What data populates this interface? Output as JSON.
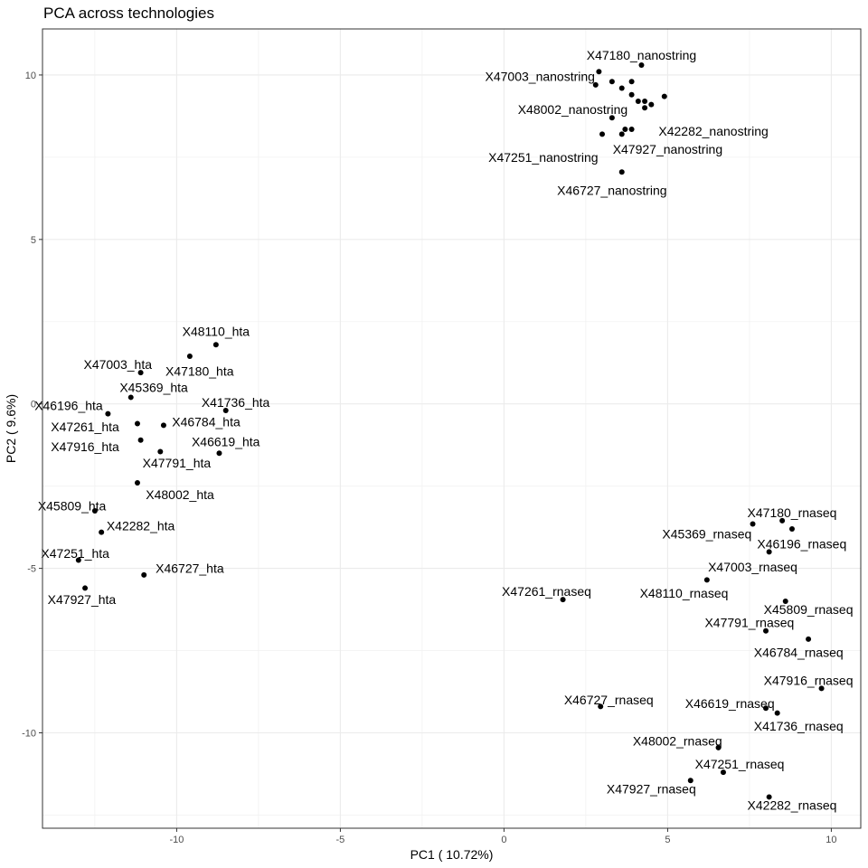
{
  "chart_data": {
    "type": "scatter",
    "title": "PCA across technologies",
    "xlabel": "PC1 ( 10.72%)",
    "ylabel": "PC2 ( 9.6%)",
    "xlim": [
      -14.1,
      10.9
    ],
    "ylim": [
      -12.9,
      11.4
    ],
    "xticks": [
      -10,
      -5,
      0,
      5,
      10
    ],
    "yticks": [
      -10,
      -5,
      0,
      5,
      10
    ],
    "grid": true,
    "legend": "none",
    "point_color": "#000000",
    "points": [
      {
        "x": 2.9,
        "y": 10.1,
        "label": "X47180_nanostring",
        "lx": 4.2,
        "ly": 10.6
      },
      {
        "x": 4.2,
        "y": 10.3,
        "label": ""
      },
      {
        "x": 2.8,
        "y": 9.7,
        "label": "X47003_nanostring",
        "lx": 1.1,
        "ly": 9.95
      },
      {
        "x": 3.3,
        "y": 9.8,
        "label": ""
      },
      {
        "x": 3.6,
        "y": 9.6,
        "label": ""
      },
      {
        "x": 3.9,
        "y": 9.8,
        "label": ""
      },
      {
        "x": 3.9,
        "y": 9.4,
        "label": ""
      },
      {
        "x": 4.1,
        "y": 9.2,
        "label": ""
      },
      {
        "x": 4.3,
        "y": 9.2,
        "label": ""
      },
      {
        "x": 4.3,
        "y": 9.0,
        "label": ""
      },
      {
        "x": 4.5,
        "y": 9.1,
        "label": ""
      },
      {
        "x": 4.9,
        "y": 9.35,
        "label": ""
      },
      {
        "x": 3.3,
        "y": 8.7,
        "label": "X48002_nanostring",
        "lx": 2.1,
        "ly": 8.95
      },
      {
        "x": 3.7,
        "y": 8.35,
        "label": "X42282_nanostring",
        "lx": 6.4,
        "ly": 8.3
      },
      {
        "x": 3.9,
        "y": 8.35,
        "label": ""
      },
      {
        "x": 3.0,
        "y": 8.2,
        "label": "X47251_nanostring",
        "lx": 1.2,
        "ly": 7.5
      },
      {
        "x": 3.6,
        "y": 8.2,
        "label": "X47927_nanostring",
        "lx": 5.0,
        "ly": 7.75
      },
      {
        "x": 3.6,
        "y": 7.05,
        "label": "X46727_nanostring",
        "lx": 3.3,
        "ly": 6.5
      },
      {
        "x": -8.8,
        "y": 1.8,
        "label": "X48110_hta",
        "lx": -8.8,
        "ly": 2.2
      },
      {
        "x": -9.6,
        "y": 1.45,
        "label": "X47180_hta",
        "lx": -9.3,
        "ly": 1.0
      },
      {
        "x": -11.1,
        "y": 0.95,
        "label": "X47003_hta",
        "lx": -11.8,
        "ly": 1.2
      },
      {
        "x": -11.4,
        "y": 0.2,
        "label": "X45369_hta",
        "lx": -10.7,
        "ly": 0.5
      },
      {
        "x": -8.5,
        "y": -0.2,
        "label": "X41736_hta",
        "lx": -8.2,
        "ly": 0.05
      },
      {
        "x": -12.1,
        "y": -0.3,
        "label": "X46196_hta",
        "lx": -13.3,
        "ly": -0.05
      },
      {
        "x": -11.2,
        "y": -0.6,
        "label": "X47261_hta",
        "lx": -12.8,
        "ly": -0.7
      },
      {
        "x": -10.4,
        "y": -0.65,
        "label": "X46784_hta",
        "lx": -9.1,
        "ly": -0.55
      },
      {
        "x": -11.1,
        "y": -1.1,
        "label": "X47916_hta",
        "lx": -12.8,
        "ly": -1.3
      },
      {
        "x": -10.5,
        "y": -1.45,
        "label": "X47791_hta",
        "lx": -10.0,
        "ly": -1.8
      },
      {
        "x": -8.7,
        "y": -1.5,
        "label": "X46619_hta",
        "lx": -8.5,
        "ly": -1.15
      },
      {
        "x": -11.2,
        "y": -2.4,
        "label": "X48002_hta",
        "lx": -9.9,
        "ly": -2.75
      },
      {
        "x": -12.5,
        "y": -3.25,
        "label": "X45809_hta",
        "lx": -13.2,
        "ly": -3.1
      },
      {
        "x": -12.3,
        "y": -3.9,
        "label": "X42282_hta",
        "lx": -11.1,
        "ly": -3.7
      },
      {
        "x": -13.0,
        "y": -4.75,
        "label": "X47251_hta",
        "lx": -13.1,
        "ly": -4.55
      },
      {
        "x": -11.0,
        "y": -5.2,
        "label": "X46727_hta",
        "lx": -9.6,
        "ly": -5.0
      },
      {
        "x": -12.8,
        "y": -5.6,
        "label": "X47927_hta",
        "lx": -12.9,
        "ly": -5.95
      },
      {
        "x": 8.5,
        "y": -3.55,
        "label": "X47180_rnaseq",
        "lx": 8.8,
        "ly": -3.3
      },
      {
        "x": 7.6,
        "y": -3.65,
        "label": "X45369_rnaseq",
        "lx": 6.2,
        "ly": -3.95
      },
      {
        "x": 8.8,
        "y": -3.8,
        "label": "X46196_rnaseq",
        "lx": 9.1,
        "ly": -4.25
      },
      {
        "x": 8.1,
        "y": -4.5,
        "label": "X47003_rnaseq",
        "lx": 7.6,
        "ly": -4.95
      },
      {
        "x": 6.2,
        "y": -5.35,
        "label": "X48110_rnaseq",
        "lx": 5.5,
        "ly": -5.75
      },
      {
        "x": 1.8,
        "y": -5.95,
        "label": "X47261_rnaseq",
        "lx": 1.3,
        "ly": -5.7
      },
      {
        "x": 8.6,
        "y": -6.0,
        "label": "X45809_rnaseq",
        "lx": 9.3,
        "ly": -6.25
      },
      {
        "x": 8.0,
        "y": -6.9,
        "label": "X47791_rnaseq",
        "lx": 7.5,
        "ly": -6.65
      },
      {
        "x": 9.3,
        "y": -7.15,
        "label": "X46784_rnaseq",
        "lx": 9.0,
        "ly": -7.55
      },
      {
        "x": 9.7,
        "y": -8.65,
        "label": "X47916_rnaseq",
        "lx": 9.3,
        "ly": -8.4
      },
      {
        "x": 2.95,
        "y": -9.2,
        "label": "X46727_rnaseq",
        "lx": 3.2,
        "ly": -9.0
      },
      {
        "x": 8.0,
        "y": -9.25,
        "label": "X46619_rnaseq",
        "lx": 6.9,
        "ly": -9.1
      },
      {
        "x": 8.35,
        "y": -9.4,
        "label": "X41736_rnaseq",
        "lx": 9.0,
        "ly": -9.8
      },
      {
        "x": 6.55,
        "y": -10.45,
        "label": "X48002_rnaseq",
        "lx": 5.3,
        "ly": -10.25
      },
      {
        "x": 6.7,
        "y": -11.2,
        "label": "X47251_rnaseq",
        "lx": 7.2,
        "ly": -10.95
      },
      {
        "x": 5.7,
        "y": -11.45,
        "label": "X47927_rnaseq",
        "lx": 4.5,
        "ly": -11.7
      },
      {
        "x": 8.1,
        "y": -11.95,
        "label": "X42282_rnaseq",
        "lx": 8.8,
        "ly": -12.2
      }
    ]
  }
}
